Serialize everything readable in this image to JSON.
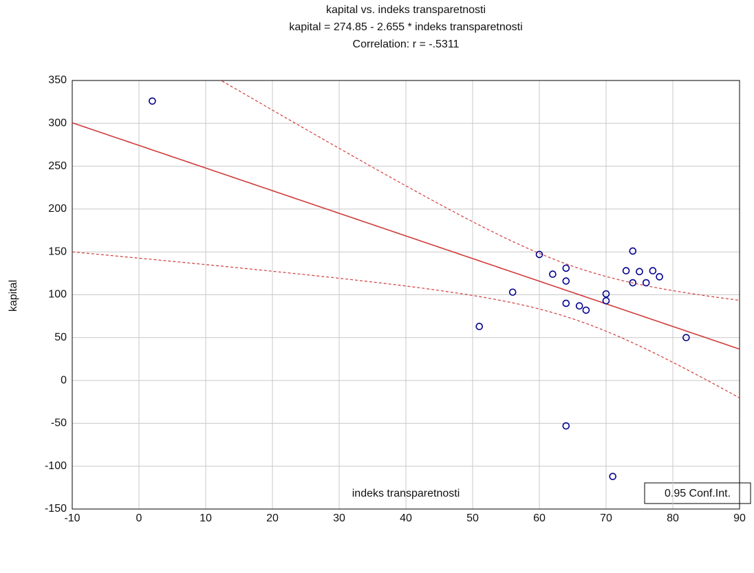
{
  "chart_data": {
    "type": "scatter",
    "title": "kapital  vs. indeks  transparetnosti",
    "subtitle": "kapital  = 274.85 - 2.655  * indeks  transparetnosti",
    "annotations": [
      "Correlation: r = -.5311",
      "0.95 Conf.Int."
    ],
    "x_label": "indeks  transparetnosti",
    "y_label": "kapital",
    "xlim": [
      -10,
      90
    ],
    "xticks": [
      -10,
      0,
      10,
      20,
      30,
      40,
      50,
      60,
      70,
      80,
      90
    ],
    "ylim": [
      -150,
      350
    ],
    "yticks": [
      -150,
      -100,
      -50,
      0,
      50,
      100,
      150,
      200,
      250,
      300,
      350
    ],
    "grid": true,
    "fit_color": "#d03a3a",
    "series": [
      {
        "color": "#00008b",
        "x": [
          2,
          60,
          56,
          51,
          62,
          64,
          64,
          64,
          64,
          66,
          67,
          70,
          70,
          71,
          73,
          74,
          74,
          75,
          76,
          77,
          78,
          82
        ],
        "values": [
          326,
          147,
          103,
          63,
          124,
          131,
          116,
          90,
          -53,
          87,
          82,
          101,
          93,
          -112,
          128,
          151,
          114,
          127,
          114,
          128,
          121,
          50
        ]
      }
    ]
  }
}
